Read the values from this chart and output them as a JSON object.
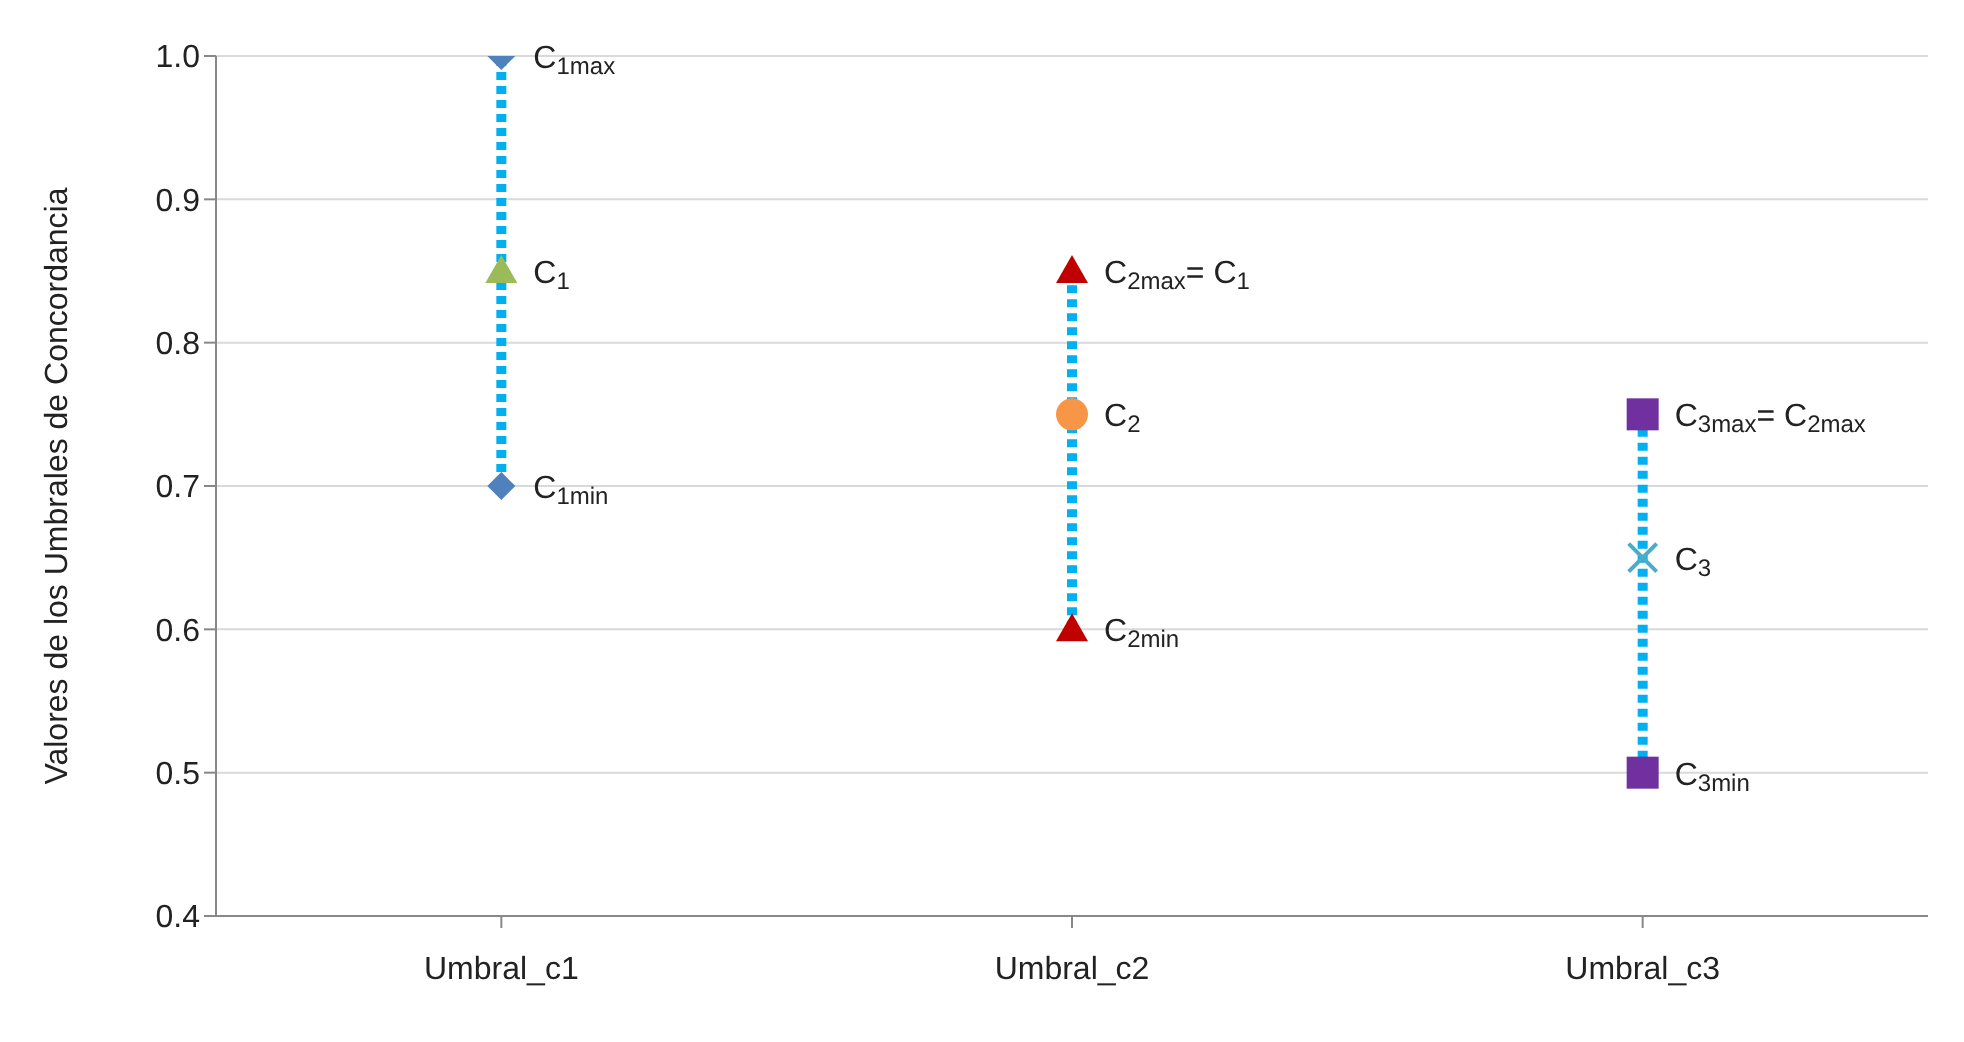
{
  "chart_data": {
    "type": "scatter",
    "ylabel": "Valores de los Umbrales de Concordancia",
    "categories": [
      "Umbral_c1",
      "Umbral_c2",
      "Umbral_c3"
    ],
    "ylim": [
      0.4,
      1.0
    ],
    "yticks": [
      0.4,
      0.5,
      0.6,
      0.7,
      0.8,
      0.9,
      {
        "value": 1.0,
        "label": "1.0"
      }
    ],
    "grid": "y",
    "series": [
      {
        "type": "line",
        "x": [
          "Umbral_c1",
          "Umbral_c1"
        ],
        "values": [
          0.7,
          1.0
        ],
        "color": "#00b0f0",
        "line_style": "dotted",
        "marker": "none"
      },
      {
        "type": "line",
        "x": [
          "Umbral_c2",
          "Umbral_c2"
        ],
        "values": [
          0.6,
          0.85
        ],
        "color": "#00b0f0",
        "line_style": "dotted",
        "marker": "none"
      },
      {
        "type": "line",
        "x": [
          "Umbral_c3",
          "Umbral_c3"
        ],
        "values": [
          0.5,
          0.75
        ],
        "color": "#00b0f0",
        "line_style": "dotted",
        "marker": "none"
      },
      {
        "x": [
          "Umbral_c1",
          "Umbral_c1"
        ],
        "values": [
          1.0,
          0.7
        ],
        "color": "#4f81bd",
        "marker": "diamond"
      },
      {
        "x": [
          "Umbral_c1"
        ],
        "values": [
          0.85
        ],
        "color": "#9bbb59",
        "marker": "triangle"
      },
      {
        "x": [
          "Umbral_c2",
          "Umbral_c2"
        ],
        "values": [
          0.85,
          0.6
        ],
        "color": "#c00000",
        "marker": "triangle"
      },
      {
        "x": [
          "Umbral_c2"
        ],
        "values": [
          0.75
        ],
        "color": "#f79646",
        "marker": "circle"
      },
      {
        "x": [
          "Umbral_c3",
          "Umbral_c3"
        ],
        "values": [
          0.75,
          0.5
        ],
        "color": "#7030a0",
        "marker": "square"
      },
      {
        "x": [
          "Umbral_c3"
        ],
        "values": [
          0.65
        ],
        "color": "#4bacc6",
        "marker": "cross"
      }
    ],
    "annotations": [
      {
        "text": "C$_{1max}$",
        "x": "Umbral_c1",
        "y": 1.0
      },
      {
        "text": "C$_{1}$",
        "x": "Umbral_c1",
        "y": 0.85
      },
      {
        "text": "C$_{1min}$",
        "x": "Umbral_c1",
        "y": 0.7
      },
      {
        "text": "C$_{2max}$= C$_{1}$",
        "x": "Umbral_c2",
        "y": 0.85
      },
      {
        "text": "C$_{2}$",
        "x": "Umbral_c2",
        "y": 0.75
      },
      {
        "text": "C$_{2min}$",
        "x": "Umbral_c2",
        "y": 0.6
      },
      {
        "text": "C$_{3max}$= C$_{2max}$",
        "x": "Umbral_c3",
        "y": 0.75
      },
      {
        "text": "C$_{3}$",
        "x": "Umbral_c3",
        "y": 0.65
      },
      {
        "text": "C$_{3min}$",
        "x": "Umbral_c3",
        "y": 0.5
      }
    ]
  }
}
